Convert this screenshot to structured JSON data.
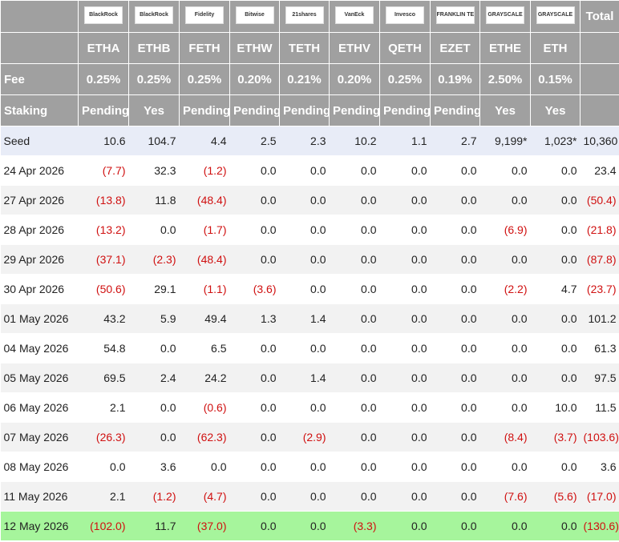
{
  "table": {
    "issuers": [
      "BlackRock",
      "BlackRock",
      "Fidelity",
      "Bitwise",
      "21shares",
      "VanEck",
      "Invesco",
      "FRANKLIN TEMPLETON",
      "GRAYSCALE",
      "GRAYSCALE"
    ],
    "total_label": "Total",
    "tickers": [
      "ETHA",
      "ETHB",
      "FETH",
      "ETHW",
      "TETH",
      "ETHV",
      "QETH",
      "EZET",
      "ETHE",
      "ETH"
    ],
    "fee_label": "Fee",
    "fees": [
      "0.25%",
      "0.25%",
      "0.25%",
      "0.20%",
      "0.21%",
      "0.20%",
      "0.25%",
      "0.19%",
      "2.50%",
      "0.15%"
    ],
    "staking_label": "Staking",
    "staking": [
      "Pending",
      "Yes",
      "Pending",
      "Pending",
      "Pending",
      "Pending",
      "Pending",
      "Pending",
      "Yes",
      "Yes"
    ],
    "rows": [
      {
        "label": "Seed",
        "values": [
          "10.6",
          "104.7",
          "4.4",
          "2.5",
          "2.3",
          "10.2",
          "1.1",
          "2.7",
          "9,199*",
          "1,023*",
          "10,360"
        ]
      },
      {
        "label": "24 Apr 2026",
        "values": [
          "(7.7)",
          "32.3",
          "(1.2)",
          "0.0",
          "0.0",
          "0.0",
          "0.0",
          "0.0",
          "0.0",
          "0.0",
          "23.4"
        ]
      },
      {
        "label": "27 Apr 2026",
        "values": [
          "(13.8)",
          "11.8",
          "(48.4)",
          "0.0",
          "0.0",
          "0.0",
          "0.0",
          "0.0",
          "0.0",
          "0.0",
          "(50.4)"
        ]
      },
      {
        "label": "28 Apr 2026",
        "values": [
          "(13.2)",
          "0.0",
          "(1.7)",
          "0.0",
          "0.0",
          "0.0",
          "0.0",
          "0.0",
          "(6.9)",
          "0.0",
          "(21.8)"
        ]
      },
      {
        "label": "29 Apr 2026",
        "values": [
          "(37.1)",
          "(2.3)",
          "(48.4)",
          "0.0",
          "0.0",
          "0.0",
          "0.0",
          "0.0",
          "0.0",
          "0.0",
          "(87.8)"
        ]
      },
      {
        "label": "30 Apr 2026",
        "values": [
          "(50.6)",
          "29.1",
          "(1.1)",
          "(3.6)",
          "0.0",
          "0.0",
          "0.0",
          "0.0",
          "(2.2)",
          "4.7",
          "(23.7)"
        ]
      },
      {
        "label": "01 May 2026",
        "values": [
          "43.2",
          "5.9",
          "49.4",
          "1.3",
          "1.4",
          "0.0",
          "0.0",
          "0.0",
          "0.0",
          "0.0",
          "101.2"
        ]
      },
      {
        "label": "04 May 2026",
        "values": [
          "54.8",
          "0.0",
          "6.5",
          "0.0",
          "0.0",
          "0.0",
          "0.0",
          "0.0",
          "0.0",
          "0.0",
          "61.3"
        ]
      },
      {
        "label": "05 May 2026",
        "values": [
          "69.5",
          "2.4",
          "24.2",
          "0.0",
          "1.4",
          "0.0",
          "0.0",
          "0.0",
          "0.0",
          "0.0",
          "97.5"
        ]
      },
      {
        "label": "06 May 2026",
        "values": [
          "2.1",
          "0.0",
          "(0.6)",
          "0.0",
          "0.0",
          "0.0",
          "0.0",
          "0.0",
          "0.0",
          "10.0",
          "11.5"
        ]
      },
      {
        "label": "07 May 2026",
        "values": [
          "(26.3)",
          "0.0",
          "(62.3)",
          "0.0",
          "(2.9)",
          "0.0",
          "0.0",
          "0.0",
          "(8.4)",
          "(3.7)",
          "(103.6)"
        ]
      },
      {
        "label": "08 May 2026",
        "values": [
          "0.0",
          "3.6",
          "0.0",
          "0.0",
          "0.0",
          "0.0",
          "0.0",
          "0.0",
          "0.0",
          "0.0",
          "3.6"
        ]
      },
      {
        "label": "11 May 2026",
        "values": [
          "2.1",
          "(1.2)",
          "(4.7)",
          "0.0",
          "0.0",
          "0.0",
          "0.0",
          "0.0",
          "(7.6)",
          "(5.6)",
          "(17.0)"
        ]
      },
      {
        "label": "12 May 2026",
        "values": [
          "(102.0)",
          "11.7",
          "(37.0)",
          "0.0",
          "0.0",
          "(3.3)",
          "0.0",
          "0.0",
          "0.0",
          "0.0",
          "(130.6)"
        ]
      }
    ]
  }
}
